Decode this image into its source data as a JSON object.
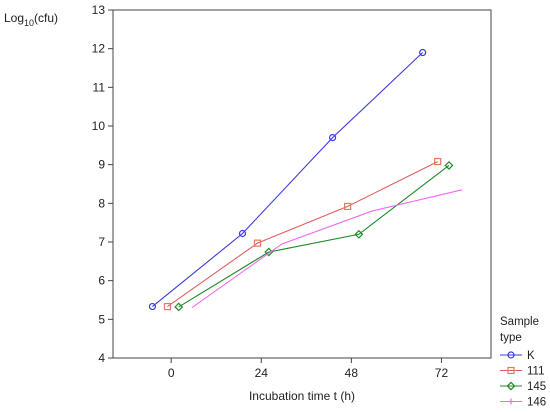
{
  "chart_data": {
    "type": "line",
    "title": "",
    "xlabel": "Incubation time t (h)",
    "ylabel_main": "Log",
    "ylabel_sub": "10",
    "ylabel_tail": "(cfu)",
    "xlim": [
      -15.5,
      85.2
    ],
    "ylim": [
      4,
      13
    ],
    "xticks": [
      "0",
      "24",
      "48",
      "72"
    ],
    "xtick_values": [
      0,
      24,
      48,
      72
    ],
    "yticks": [
      "4",
      "5",
      "6",
      "7",
      "8",
      "9",
      "10",
      "11",
      "12",
      "13"
    ],
    "ytick_values": [
      4,
      5,
      6,
      7,
      8,
      9,
      10,
      11,
      12,
      13
    ],
    "grid": false,
    "legend": {
      "title_line1": "Sample",
      "title_line2": "type",
      "placement": "right"
    },
    "series": [
      {
        "name": "K",
        "color": "#3a3ae0",
        "marker": "circle",
        "x": [
          -5,
          19,
          43,
          67
        ],
        "y": [
          5.33,
          7.22,
          9.7,
          11.9
        ]
      },
      {
        "name": "111",
        "color": "#e07a5f",
        "line_color": "#e06060",
        "marker": "square",
        "x": [
          -1,
          23,
          47,
          71
        ],
        "y": [
          5.33,
          6.97,
          7.92,
          9.08
        ]
      },
      {
        "name": "145",
        "color": "#1f8a2a",
        "marker": "diamond",
        "x": [
          2,
          26,
          50,
          74
        ],
        "y": [
          5.32,
          6.74,
          7.2,
          8.98
        ]
      },
      {
        "name": "146",
        "color": "#f06af0",
        "marker": "plus",
        "x": [
          5.5,
          29.5,
          53.5,
          77.5
        ],
        "y": [
          5.3,
          6.95,
          7.8,
          8.35
        ]
      }
    ]
  }
}
